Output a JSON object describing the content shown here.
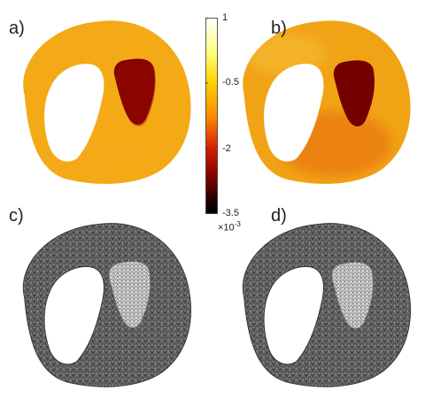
{
  "panels": [
    {
      "label": "a)"
    },
    {
      "label": "b)"
    },
    {
      "label": "c)"
    },
    {
      "label": "d)"
    }
  ],
  "colorbar": {
    "ticks": [
      "1",
      "-0.5",
      "-2",
      "-3.5"
    ],
    "multiplier": "×10",
    "exponent": "-3",
    "colors": [
      "#ffffff",
      "#ffff80",
      "#ffd200",
      "#ff8c00",
      "#d42400",
      "#8b0000",
      "#2a0000",
      "#000000"
    ]
  },
  "colors": {
    "noisy_field": "#f2a21a",
    "smooth_field": "#f0a315",
    "lesion": "#7a0000",
    "mesh_dark": "#555555",
    "mesh_light": "#d8d8d8"
  }
}
